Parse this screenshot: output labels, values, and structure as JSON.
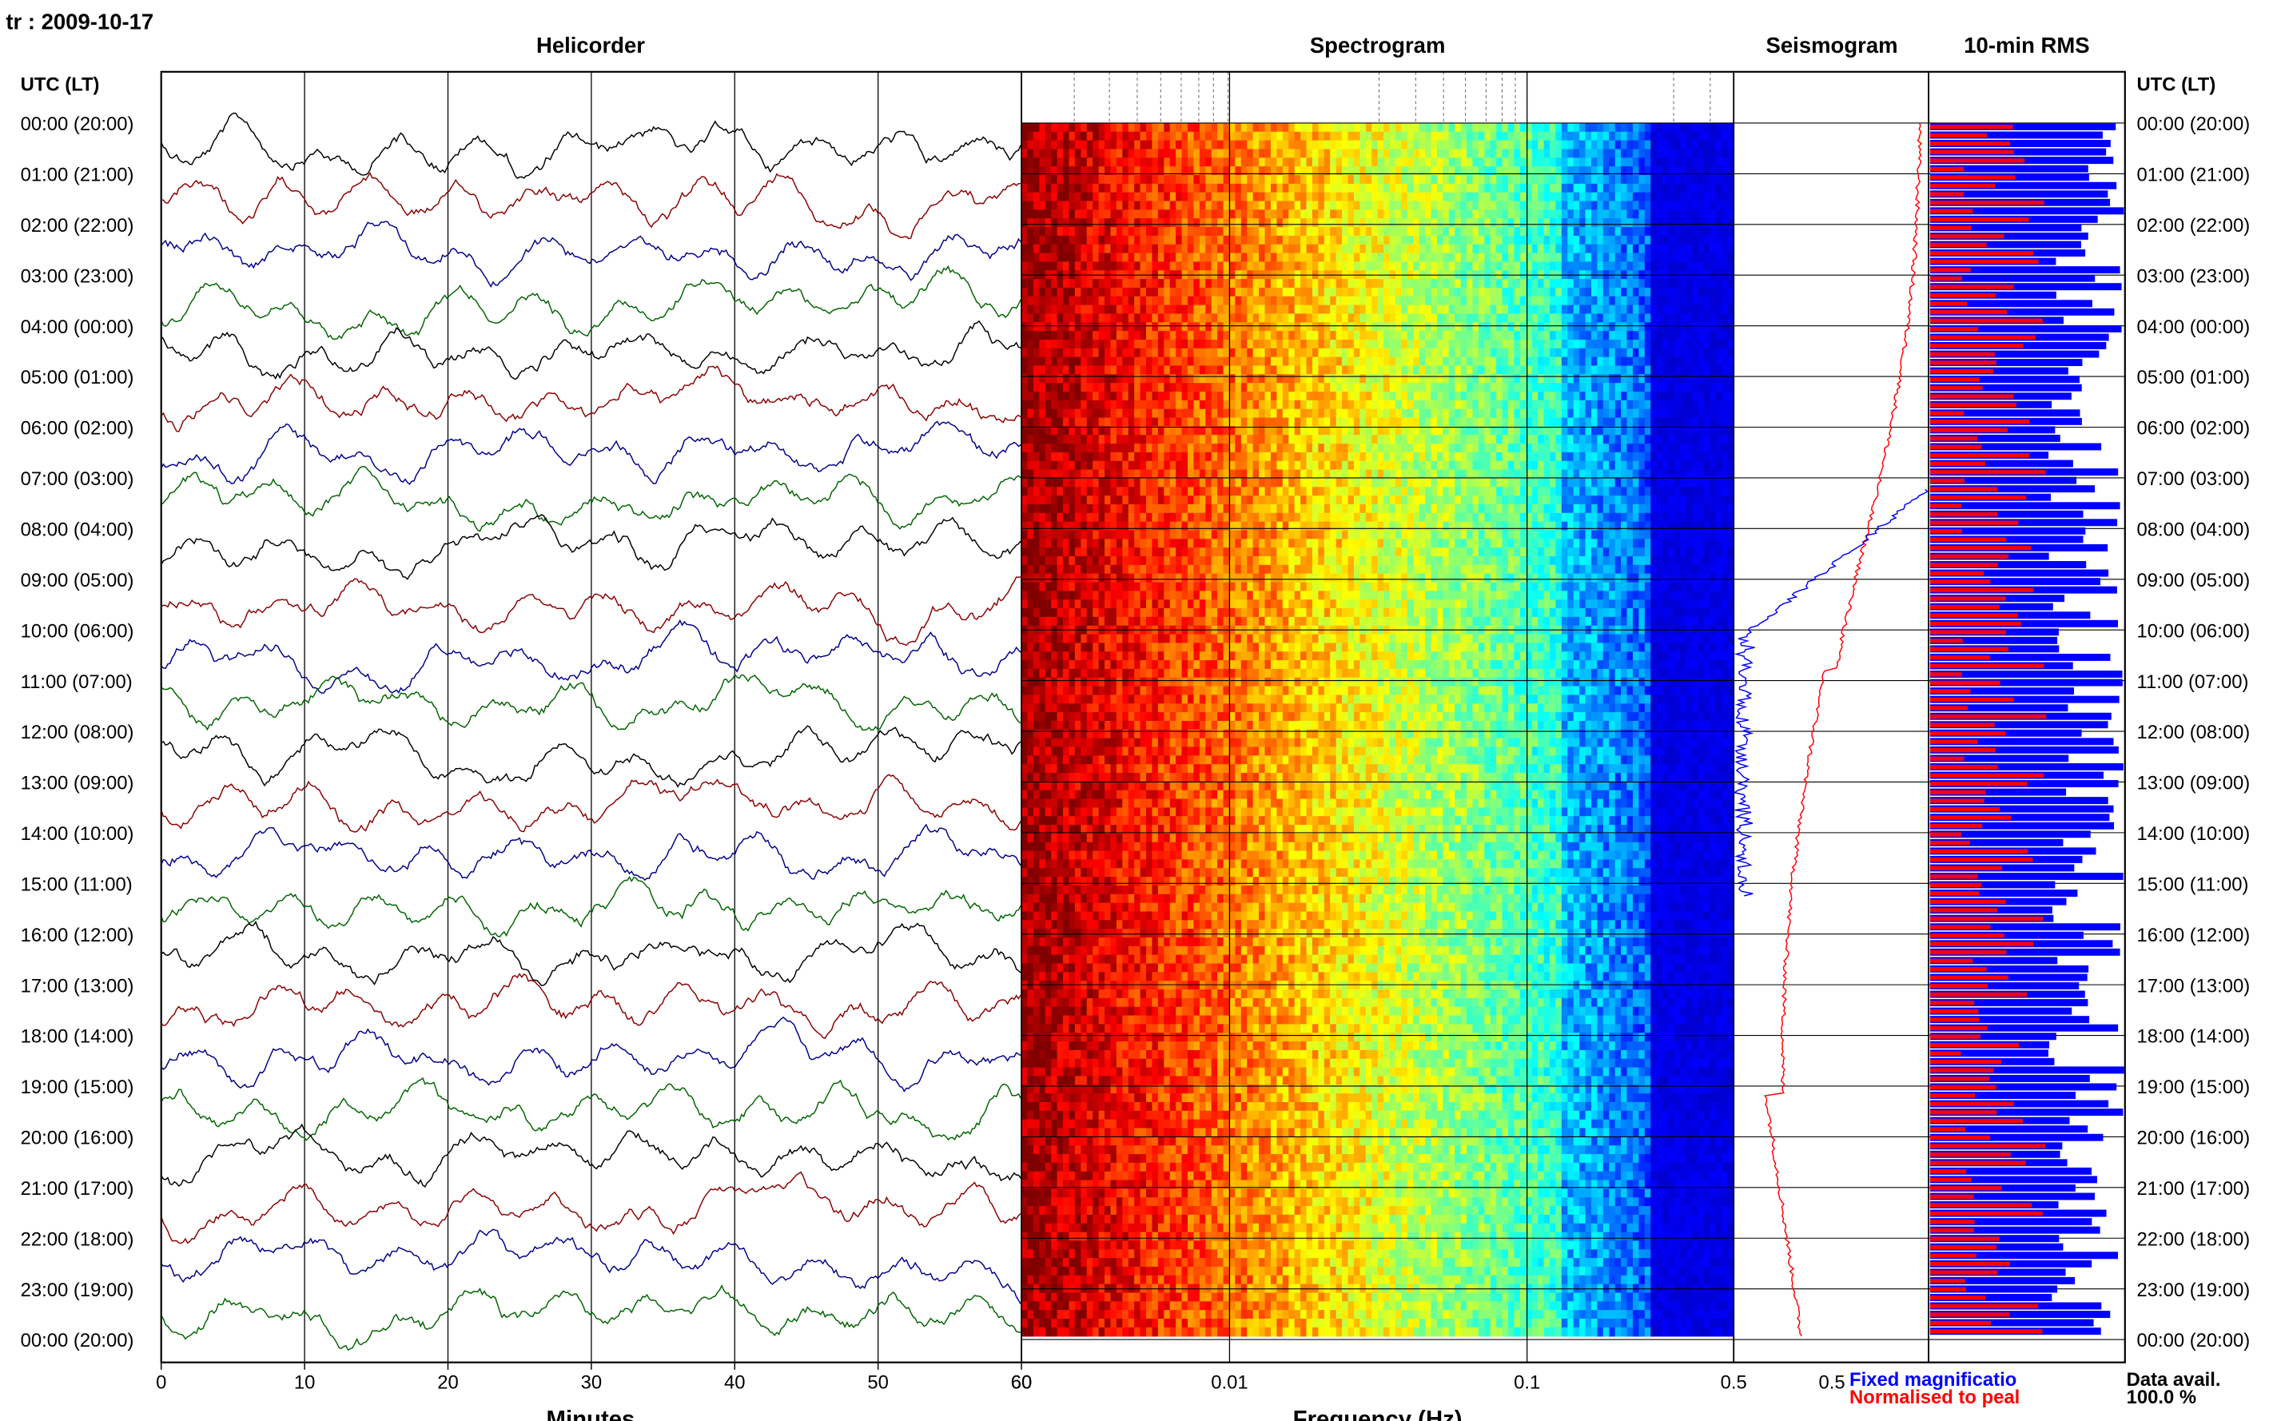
{
  "header": {
    "station_date": "tr : 2009-10-17"
  },
  "panels": {
    "helicorder": "Helicorder",
    "spectrogram": "Spectrogram",
    "seismogram": "Seismogram",
    "rms": "10-min RMS"
  },
  "axis_header_left": "UTC (LT)",
  "axis_header_right": "UTC (LT)",
  "time_labels": [
    "00:00 (20:00)",
    "01:00 (21:00)",
    "02:00 (22:00)",
    "03:00 (23:00)",
    "04:00 (00:00)",
    "05:00 (01:00)",
    "06:00 (02:00)",
    "07:00 (03:00)",
    "08:00 (04:00)",
    "09:00 (05:00)",
    "10:00 (06:00)",
    "11:00 (07:00)",
    "12:00 (08:00)",
    "13:00 (09:00)",
    "14:00 (10:00)",
    "15:00 (11:00)",
    "16:00 (12:00)",
    "17:00 (13:00)",
    "18:00 (14:00)",
    "19:00 (15:00)",
    "20:00 (16:00)",
    "21:00 (17:00)",
    "22:00 (18:00)",
    "23:00 (19:00)",
    "00:00 (20:00)"
  ],
  "legend": {
    "fixed": "Fixed magnificatio",
    "normalised": "Normalised to peal",
    "fixed_color": "#0000ff",
    "normalised_color": "#ff0000"
  },
  "data_avail": {
    "label": "Data avail.",
    "value": "100.0 %"
  },
  "chart_data": [
    {
      "type": "line",
      "title": "Helicorder",
      "xlabel": "Minutes",
      "xlim": [
        0,
        60
      ],
      "x_ticks": [
        "0",
        "10",
        "20",
        "30",
        "40",
        "50",
        "60"
      ],
      "line_colors": [
        "#000000",
        "#8b0000",
        "#00008b",
        "#006400"
      ],
      "rows": 24
    },
    {
      "type": "heatmap",
      "title": "Spectrogram",
      "xlabel": "Frequency (Hz)",
      "xscale": "log",
      "x_ticks": [
        "60",
        "0.01",
        "0.1",
        "0.5"
      ],
      "colormap": "jet"
    },
    {
      "type": "line",
      "title": "Seismogram",
      "x_ticks": [
        "0.5"
      ],
      "series": [
        {
          "name": "Fixed magnificatio",
          "color": "#0000ff"
        },
        {
          "name": "Normalised to peal",
          "color": "#ff0000"
        }
      ]
    },
    {
      "type": "bar",
      "title": "10-min RMS",
      "orientation": "horizontal",
      "series": [
        {
          "name": "Fixed magnificatio",
          "color": "#0000ff"
        },
        {
          "name": "Normalised to peal",
          "color": "#ff0000"
        }
      ]
    }
  ]
}
